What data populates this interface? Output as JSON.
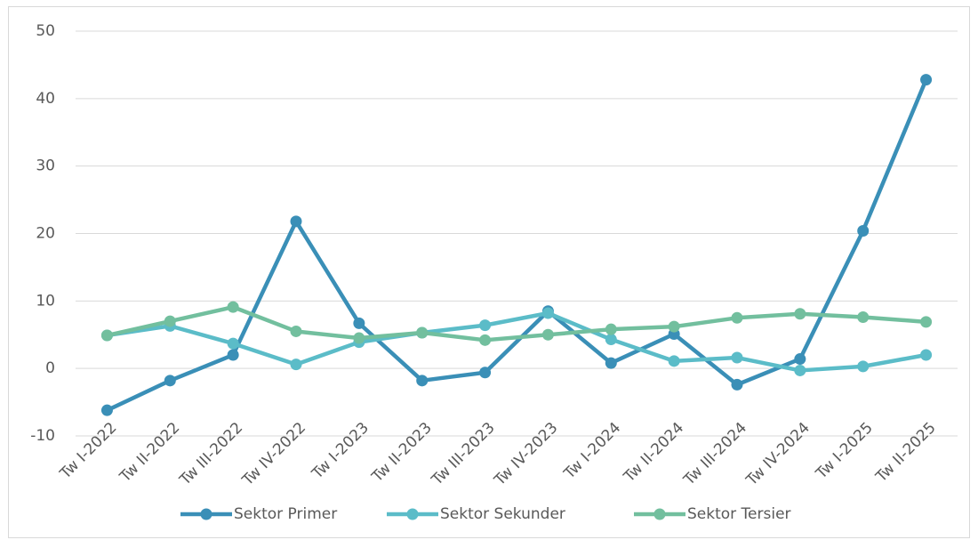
{
  "chart_data": {
    "type": "line",
    "categories": [
      "Tw I-2022",
      "Tw II-2022",
      "Tw III-2022",
      "Tw IV-2022",
      "Tw I-2023",
      "Tw II-2023",
      "Tw III-2023",
      "Tw IV-2023",
      "Tw I-2024",
      "Tw II-2024",
      "Tw III-2024",
      "Tw IV-2024",
      "Tw I-2025",
      "Tw II-2025"
    ],
    "series": [
      {
        "name": "Sektor Primer",
        "color": "#3a8fb7",
        "values": [
          -6.2,
          -1.8,
          2.0,
          21.8,
          6.7,
          -1.8,
          -0.6,
          8.5,
          0.8,
          5.1,
          -2.4,
          1.4,
          20.4,
          42.8
        ]
      },
      {
        "name": "Sektor Sekunder",
        "color": "#5bbcc8",
        "values": [
          4.9,
          6.3,
          3.7,
          0.6,
          3.9,
          5.3,
          6.4,
          8.2,
          4.3,
          1.1,
          1.6,
          -0.3,
          0.3,
          2.0
        ]
      },
      {
        "name": "Sektor Tersier",
        "color": "#72bf9e",
        "values": [
          4.9,
          7.0,
          9.1,
          5.5,
          4.5,
          5.3,
          4.2,
          5.0,
          5.8,
          6.2,
          7.5,
          8.1,
          7.6,
          6.9
        ]
      }
    ],
    "ylim": [
      -10,
      50
    ],
    "yticks": [
      -10,
      0,
      10,
      20,
      30,
      40,
      50
    ],
    "grid": true,
    "legend": "bottom"
  }
}
